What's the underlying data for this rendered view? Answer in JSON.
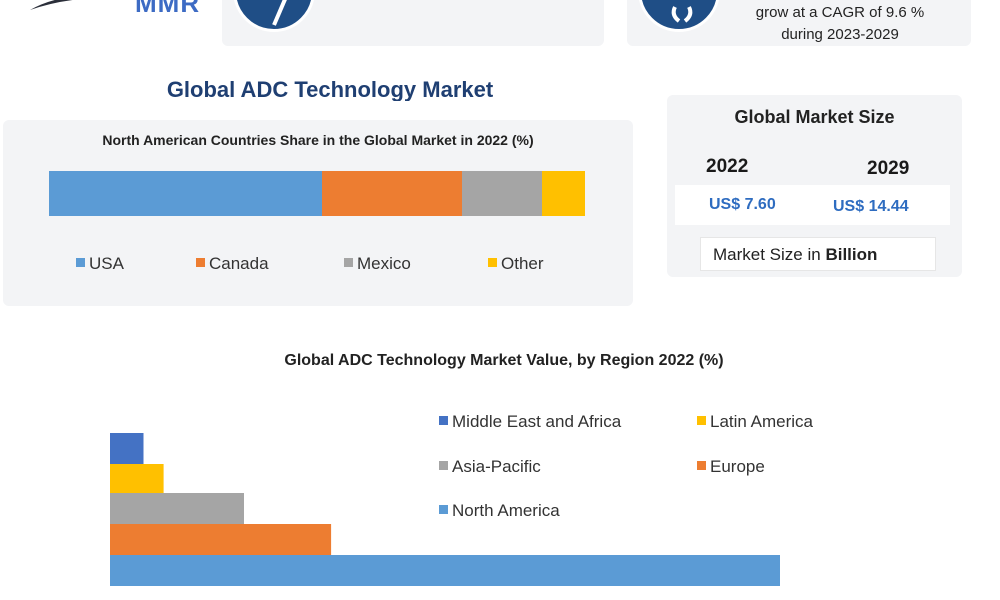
{
  "header": {
    "logo_text": "MMR",
    "top_card_2_text": [
      "grow at a CAGR of 9.6 %",
      "during 2023-2029"
    ]
  },
  "colors": {
    "usa": "#5b9bd5",
    "canada": "#ed7d31",
    "mexico": "#a5a5a5",
    "other": "#ffc000",
    "mea": "#4472c4",
    "latin": "#ffc000",
    "apac": "#a5a5a5",
    "europe": "#ed7d31",
    "na": "#5b9bd5",
    "brand": "#1f4e86"
  },
  "infographic_title": "Global ADC Technology Market",
  "market_size": {
    "title": "Global Market Size",
    "years": [
      "2022",
      "2029"
    ],
    "values": [
      "US$ 7.60",
      "US$ 14.44"
    ],
    "unit_prefix": "Market Size in ",
    "unit_bold": "Billion"
  },
  "chart_data": [
    {
      "type": "bar",
      "orientation": "horizontal-stacked",
      "title": "North American Countries Share in the Global Market in 2022 (%)",
      "series": [
        {
          "name": "USA",
          "values": [
            51
          ]
        },
        {
          "name": "Canada",
          "values": [
            26
          ]
        },
        {
          "name": "Mexico",
          "values": [
            15
          ]
        },
        {
          "name": "Other",
          "values": [
            8
          ]
        }
      ],
      "xlim": [
        0,
        100
      ],
      "legend": "bottom"
    },
    {
      "type": "bar",
      "orientation": "horizontal",
      "title": "Global ADC Technology Market Value, by Region 2022 (%)",
      "categories": [
        "Middle East and Africa",
        "Latin America",
        "Asia-Pacific",
        "Europe",
        "North America"
      ],
      "values": [
        5,
        8,
        20,
        33,
        100
      ],
      "legend_order": [
        "Middle East and Africa",
        "Latin America",
        "Asia-Pacific",
        "Europe",
        "North America"
      ],
      "legend": "top-right",
      "grid": false
    }
  ]
}
